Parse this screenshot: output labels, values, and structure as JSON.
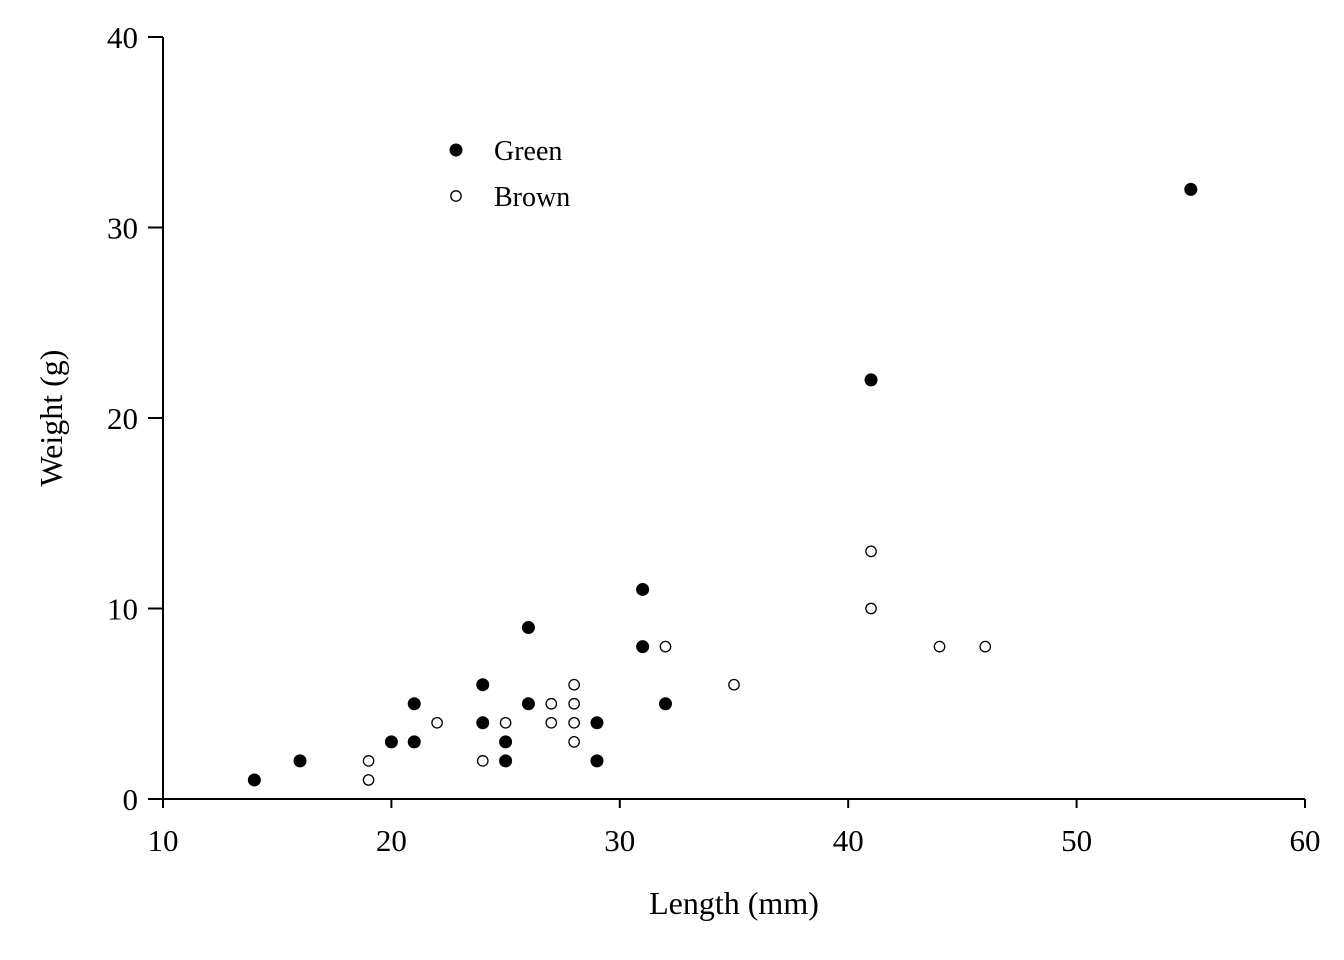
{
  "chart_data": {
    "type": "scatter",
    "title": "",
    "xlabel": "Length (mm)",
    "ylabel": "Weight (g)",
    "xlim": [
      10,
      60
    ],
    "ylim": [
      0,
      40
    ],
    "xticks": [
      "10",
      "20",
      "30",
      "40",
      "50",
      "60"
    ],
    "yticks": [
      "0",
      "10",
      "20",
      "30",
      "40"
    ],
    "grid": false,
    "legend": "top-left",
    "series": [
      {
        "name": "Green",
        "marker": "filled-circle",
        "color": "#000000",
        "points": [
          [
            14,
            1
          ],
          [
            16,
            2
          ],
          [
            20,
            3
          ],
          [
            21,
            3
          ],
          [
            21,
            5
          ],
          [
            24,
            4
          ],
          [
            24,
            6
          ],
          [
            25,
            2
          ],
          [
            25,
            3
          ],
          [
            26,
            5
          ],
          [
            26,
            9
          ],
          [
            29,
            2
          ],
          [
            29,
            4
          ],
          [
            31,
            8
          ],
          [
            31,
            11
          ],
          [
            32,
            5
          ],
          [
            41,
            22
          ],
          [
            55,
            32
          ]
        ]
      },
      {
        "name": "Brown",
        "marker": "open-circle",
        "color": "#000000",
        "points": [
          [
            19,
            1
          ],
          [
            19,
            2
          ],
          [
            22,
            4
          ],
          [
            24,
            2
          ],
          [
            25,
            4
          ],
          [
            27,
            4
          ],
          [
            27,
            5
          ],
          [
            28,
            3
          ],
          [
            28,
            4
          ],
          [
            28,
            5
          ],
          [
            28,
            6
          ],
          [
            32,
            8
          ],
          [
            35,
            6
          ],
          [
            41,
            10
          ],
          [
            41,
            13
          ],
          [
            44,
            8
          ],
          [
            46,
            8
          ]
        ]
      }
    ]
  }
}
